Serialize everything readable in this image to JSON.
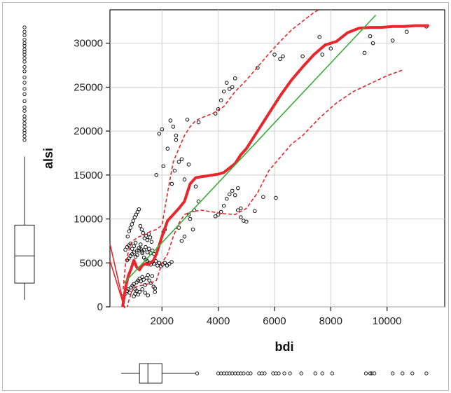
{
  "chart_data": {
    "type": "scatter",
    "title": "",
    "xlabel": "bdi",
    "ylabel": "alsi",
    "xlim": [
      150,
      12050
    ],
    "ylim": [
      0,
      33800
    ],
    "x_ticks": [
      2000,
      4000,
      6000,
      8000,
      10000
    ],
    "y_ticks": [
      0,
      5000,
      10000,
      15000,
      20000,
      25000,
      30000
    ],
    "grid": true,
    "legend": "none",
    "colors": {
      "points": "#111111",
      "loess_fit": "#e8262b",
      "confidence_band": "#e8262b",
      "linear_fit": "#3aac3a",
      "grid": "#cfcfcf",
      "boxplot": "#222222"
    },
    "series": [
      {
        "kind": "points",
        "x": [
          620,
          700,
          760,
          800,
          850,
          900,
          950,
          1000,
          1050,
          1100,
          1150,
          1200,
          1250,
          1300,
          1350,
          1400,
          1450,
          1500,
          1550,
          1600,
          1650,
          1700,
          1750,
          760,
          820,
          880,
          940,
          1000,
          1060,
          1120,
          1180,
          1240,
          1300,
          1360,
          1420,
          1480,
          1540,
          1600,
          1660,
          1720,
          1780,
          1840,
          1900,
          1960,
          2020,
          2100,
          2180,
          2260,
          2340,
          780,
          830,
          880,
          930,
          980,
          1030,
          1080,
          1130,
          1180,
          1230,
          1280,
          1330,
          1380,
          1430,
          1480,
          1530,
          1580,
          1630,
          700,
          760,
          820,
          880,
          940,
          1000,
          1060,
          1120,
          1180,
          1240,
          1300,
          1360,
          1420,
          1480,
          1540,
          1600,
          1660,
          1720,
          1000,
          1050,
          1100,
          1150,
          1200,
          1300,
          1400,
          1500,
          1800,
          1900,
          2000,
          2050,
          2100,
          2200,
          2300,
          2400,
          2500,
          2600,
          2700,
          2800,
          2900,
          2950,
          3000,
          3100,
          3200,
          3300,
          1750,
          2050,
          2350,
          2450,
          2500,
          2600,
          2700,
          2800,
          2950,
          3150,
          3300,
          3900,
          4000,
          4100,
          4200,
          4300,
          4400,
          4500,
          4600,
          4700,
          4800,
          5400,
          6000,
          6200,
          6300,
          7000,
          7600,
          7700,
          8000,
          9200,
          9400,
          9500,
          10200,
          10700,
          11400,
          3900,
          4000,
          4100,
          4200,
          4300,
          4400,
          4500,
          4600,
          4700,
          4800,
          4900,
          5000,
          5300,
          5600,
          6050
        ],
        "y": [
          1200,
          1500,
          1800,
          2000,
          1600,
          2200,
          2400,
          2600,
          2000,
          2800,
          3000,
          3200,
          2900,
          3400,
          3100,
          2500,
          3300,
          3600,
          3000,
          2700,
          3500,
          2300,
          2100,
          5300,
          5500,
          5800,
          6000,
          6200,
          5700,
          5900,
          6400,
          6600,
          6100,
          5600,
          5400,
          5200,
          5000,
          4800,
          5100,
          4900,
          5200,
          4700,
          5000,
          4600,
          4800,
          5000,
          4700,
          4900,
          5100,
          8000,
          8600,
          9000,
          9400,
          9800,
          10200,
          10500,
          10800,
          11100,
          9200,
          8800,
          8400,
          7800,
          8100,
          7600,
          8300,
          7900,
          7400,
          6500,
          6800,
          7000,
          7200,
          6600,
          6900,
          7300,
          6400,
          6700,
          7100,
          6300,
          6500,
          6800,
          6200,
          6600,
          6100,
          6400,
          6000,
          1200,
          1500,
          1800,
          1400,
          1700,
          2000,
          1600,
          1300,
          15000,
          19700,
          20200,
          8500,
          8800,
          18000,
          21200,
          20500,
          19000,
          16500,
          16800,
          14500,
          21300,
          16200,
          10000,
          8800,
          13700,
          21000,
          1700,
          16000,
          14000,
          15500,
          19500,
          9000,
          7500,
          8000,
          10500,
          11000,
          12000,
          22000,
          22500,
          23500,
          24500,
          25500,
          24800,
          25000,
          26000,
          11000,
          11200,
          27200,
          28700,
          28200,
          28500,
          28500,
          30700,
          28700,
          29400,
          28900,
          30800,
          30000,
          30300,
          31300,
          31900,
          10300,
          10500,
          10800,
          11500,
          12300,
          12800,
          13200,
          12700,
          13500,
          10200,
          9800,
          9700,
          10900,
          12500,
          12400
        ]
      },
      {
        "kind": "loess_fit",
        "x": [
          600,
          700,
          800,
          900,
          1000,
          1100,
          1200,
          1300,
          1400,
          1500,
          1600,
          1700,
          1800,
          1900,
          2000,
          2200,
          2400,
          2600,
          2800,
          3000,
          3200,
          3400,
          3600,
          3800,
          4000,
          4200,
          4400,
          4600,
          4800,
          5000,
          5400,
          5800,
          6200,
          6600,
          7000,
          7400,
          7800,
          8200,
          8600,
          9000,
          9400,
          9800,
          10200,
          10600,
          11000,
          11450
        ],
        "y": [
          0,
          2100,
          3500,
          4300,
          5300,
          4500,
          4200,
          4700,
          4900,
          4800,
          5000,
          5300,
          6000,
          7000,
          8000,
          9800,
          10500,
          11200,
          12000,
          14000,
          14700,
          14800,
          14900,
          15000,
          15100,
          15300,
          15800,
          16300,
          17300,
          18000,
          20000,
          22000,
          24000,
          25800,
          27300,
          28700,
          29800,
          30200,
          31200,
          31700,
          31800,
          31800,
          31900,
          31900,
          32000,
          32000
        ]
      },
      {
        "kind": "confidence_upper",
        "x": [
          620,
          700,
          800,
          900,
          1000,
          1200,
          1400,
          1600,
          1800,
          2000,
          2200,
          2400,
          2600,
          2800,
          3000,
          3200,
          3400,
          3800,
          4200,
          4600,
          5000,
          5400,
          5800,
          6200,
          6600,
          7000,
          7400,
          7800
        ],
        "y": [
          2000,
          4800,
          6200,
          7200,
          7600,
          8000,
          8200,
          8600,
          8800,
          9300,
          13000,
          16500,
          18000,
          19500,
          20500,
          21200,
          21500,
          22000,
          22800,
          24500,
          25800,
          27300,
          28800,
          30200,
          31500,
          32500,
          33500,
          34200
        ]
      },
      {
        "kind": "confidence_lower",
        "x": [
          600,
          700,
          800,
          900,
          1000,
          1200,
          1400,
          1600,
          1800,
          2000,
          2200,
          2400,
          2600,
          2800,
          3000,
          3400,
          3800,
          4200,
          4600,
          5000,
          5400,
          5800,
          6200,
          6600,
          7000,
          7600,
          8200,
          8800,
          9400,
          10000,
          10600
        ],
        "y": [
          -2000,
          -1000,
          500,
          1500,
          2200,
          2400,
          2500,
          2700,
          3000,
          5000,
          6000,
          8000,
          9500,
          10500,
          10800,
          11000,
          10800,
          10600,
          10500,
          11200,
          13000,
          15500,
          17000,
          18500,
          19500,
          21500,
          23200,
          24500,
          25400,
          26300,
          27000
        ]
      },
      {
        "kind": "linear_fit",
        "x": [
          650,
          9600
        ],
        "y": [
          2700,
          33200
        ]
      }
    ],
    "marginal_x_boxplot": {
      "min": 150,
      "q1": 1200,
      "median": 1500,
      "q3": 2000,
      "whisker_max": 3200,
      "outliers": [
        3250,
        4000,
        4100,
        4200,
        4300,
        4400,
        4500,
        4600,
        4700,
        4800,
        4900,
        5050,
        5150,
        5450,
        5550,
        5650,
        5950,
        6050,
        6150,
        6350,
        6550,
        6950,
        7450,
        7700,
        8050,
        9250,
        9400,
        9450,
        9550,
        10200,
        10550,
        10900,
        11400
      ]
    },
    "marginal_y_boxplot": {
      "min": 800,
      "q1": 2700,
      "median": 5800,
      "q3": 9300,
      "whisker_max": 17100,
      "outliers": [
        19000,
        19400,
        19800,
        20100,
        20500,
        20900,
        21300,
        21700,
        22300,
        22700,
        23400,
        24200,
        24800,
        25500,
        26100,
        26800,
        27300,
        27900,
        28300,
        28700,
        29000,
        29300,
        29700,
        30000,
        30400,
        30900,
        31300,
        31800
      ]
    }
  }
}
